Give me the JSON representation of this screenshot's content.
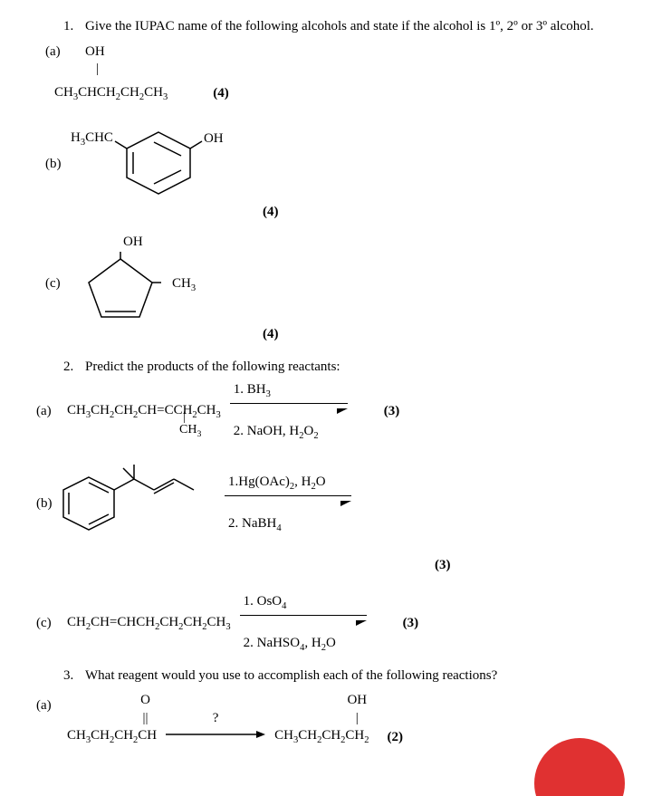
{
  "q1": {
    "num": "1.",
    "text": "Give the IUPAC name of the following alcohols and state if the alcohol is 1º, 2º or 3º alcohol.",
    "parts": {
      "a": {
        "letter": "(a)",
        "oh": "OH",
        "bar": "|",
        "formula": "CH₃CHCH₂CH₂CH₃",
        "marks": "(4)"
      },
      "b": {
        "letter": "(b)",
        "left": "H₃CHC",
        "right": "OH",
        "marks": "(4)"
      },
      "c": {
        "letter": "(c)",
        "oh": "OH",
        "ch3": "CH₃",
        "marks": "(4)"
      }
    }
  },
  "q2": {
    "num": "2.",
    "text": "Predict the products of the following reactants:",
    "parts": {
      "a": {
        "letter": "(a)",
        "formula": "CH₃CH₂CH₂CH=CCH₂CH₃",
        "sub": "CH₃",
        "top": "1. BH₃",
        "bot": "2. NaOH, H₂O₂",
        "marks": "(3)"
      },
      "b": {
        "letter": "(b)",
        "top": "1.Hg(OAc)₂, H₂O",
        "bot": "2. NaBH₄",
        "marks": "(3)"
      },
      "c": {
        "letter": "(c)",
        "formula": "CH₂CH=CHCH₂CH₂CH₂CH₃",
        "top": "1. OsO₄",
        "bot": "2. NaHSO₄, H₂O",
        "marks": "(3)"
      }
    }
  },
  "q3": {
    "num": "3.",
    "text": "What reagent would you use to accomplish each of the following reactions?",
    "parts": {
      "a": {
        "letter": "(a)",
        "left_top": "O",
        "left_mid": "||",
        "left_bot": "CH₃CH₂CH₂CH",
        "q": "?",
        "right_top": "OH",
        "right_mid": "|",
        "right_bot": "CH₃CH₂CH₂CH₂",
        "marks": "(2)"
      }
    }
  },
  "colors": {
    "text": "#000000",
    "bg": "#ffffff",
    "accent": "#e03131"
  }
}
